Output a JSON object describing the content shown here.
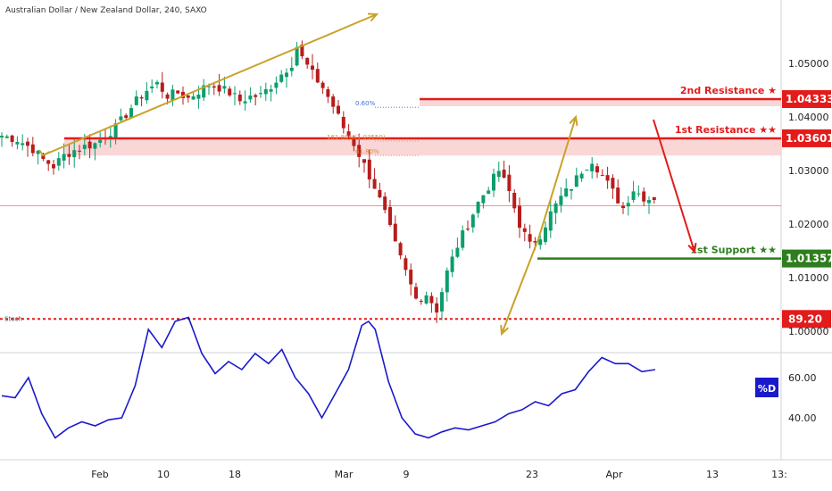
{
  "header": {
    "title": "Australian Dollar / New Zealand Dollar, 240, SAXO"
  },
  "colors": {
    "bull": "#0b9e6b",
    "bear": "#b71c1c",
    "resistance": "#e31b1b",
    "resistance_zone": "#f7c6c6",
    "support": "#2e7d1e",
    "arrow_gold": "#c9a227",
    "arrow_red": "#e31b1b",
    "stoch_line": "#1a1acc",
    "price_line": "#e57373",
    "fib_blue": "#3f6fd6",
    "fib_orange": "#e0902d"
  },
  "chart_data": [
    {
      "type": "candlestick",
      "symbol": "AUD/NZD",
      "timeframe": "240",
      "x_ticks": [
        "Feb",
        "10",
        "18",
        "Mar",
        "9",
        "23",
        "Apr",
        "13",
        "13:"
      ],
      "y_ticks": [
        "1.00000",
        "1.01000",
        "1.02000",
        "1.03000",
        "1.04000",
        "1.05000"
      ],
      "ylim": [
        0.996,
        1.057
      ],
      "close_path": [
        [
          0,
          1.0365
        ],
        [
          3,
          1.0358
        ],
        [
          6,
          1.034
        ],
        [
          8,
          1.032
        ],
        [
          10,
          1.0308
        ],
        [
          12,
          1.0328
        ],
        [
          14,
          1.0338
        ],
        [
          16,
          1.0345
        ],
        [
          18,
          1.035
        ],
        [
          20,
          1.0365
        ],
        [
          22,
          1.038
        ],
        [
          24,
          1.0405
        ],
        [
          26,
          1.043
        ],
        [
          28,
          1.045
        ],
        [
          30,
          1.0462
        ],
        [
          32,
          1.044
        ],
        [
          34,
          1.0445
        ],
        [
          36,
          1.0435
        ],
        [
          38,
          1.0448
        ],
        [
          40,
          1.046
        ],
        [
          42,
          1.0455
        ],
        [
          44,
          1.0445
        ],
        [
          46,
          1.043
        ],
        [
          48,
          1.0438
        ],
        [
          50,
          1.044
        ],
        [
          52,
          1.0458
        ],
        [
          54,
          1.048
        ],
        [
          56,
          1.05
        ],
        [
          57,
          1.0532
        ],
        [
          58,
          1.051
        ],
        [
          60,
          1.048
        ],
        [
          62,
          1.0455
        ],
        [
          64,
          1.042
        ],
        [
          66,
          1.038
        ],
        [
          68,
          1.035
        ],
        [
          70,
          1.031
        ],
        [
          72,
          1.027
        ],
        [
          74,
          1.022
        ],
        [
          76,
          1.016
        ],
        [
          78,
          1.011
        ],
        [
          80,
          1.006
        ],
        [
          82,
          1.007
        ],
        [
          84,
          1.004
        ],
        [
          86,
          1.011
        ],
        [
          88,
          1.016
        ],
        [
          90,
          1.02
        ],
        [
          92,
          1.024
        ],
        [
          94,
          1.027
        ],
        [
          96,
          1.03
        ],
        [
          98,
          1.026
        ],
        [
          100,
          1.02
        ],
        [
          102,
          1.016
        ],
        [
          104,
          1.018
        ],
        [
          106,
          1.022
        ],
        [
          108,
          1.025
        ],
        [
          110,
          1.027
        ],
        [
          112,
          1.03
        ],
        [
          114,
          1.032
        ],
        [
          116,
          1.029
        ],
        [
          118,
          1.026
        ],
        [
          120,
          1.023
        ],
        [
          122,
          1.0265
        ],
        [
          124,
          1.025
        ],
        [
          126,
          1.0245
        ]
      ],
      "levels": [
        {
          "label": "2nd Resistance ★",
          "value": "1.04333",
          "price": 1.04333,
          "kind": "resistance"
        },
        {
          "label": "1st Resistance ★★",
          "value": "1.03601",
          "price": 1.03601,
          "kind": "resistance"
        },
        {
          "label": "1st Support ★★",
          "value": "1.01357",
          "price": 1.01357,
          "kind": "support"
        }
      ],
      "current_price": 1.0234,
      "fib_labels": [
        {
          "text": "0.60%",
          "price": 1.0418
        },
        {
          "text": "161.80%(1.03550)",
          "price": 1.0355
        },
        {
          "text": "61.80%",
          "price": 1.0328
        }
      ]
    },
    {
      "type": "line",
      "name": "Stoch",
      "indicator_label": "Stoch",
      "y_ticks": [
        "40.00",
        "60.00"
      ],
      "ylim": [
        25,
        95
      ],
      "level": "89.20",
      "level_value": 89.2,
      "percent_d_label": "%D",
      "values": [
        [
          0,
          51
        ],
        [
          2,
          50
        ],
        [
          4,
          60
        ],
        [
          6,
          42
        ],
        [
          8,
          30
        ],
        [
          10,
          35
        ],
        [
          12,
          38
        ],
        [
          14,
          36
        ],
        [
          16,
          39
        ],
        [
          18,
          40
        ],
        [
          20,
          56
        ],
        [
          22,
          84
        ],
        [
          24,
          75
        ],
        [
          26,
          88
        ],
        [
          28,
          90
        ],
        [
          30,
          72
        ],
        [
          32,
          62
        ],
        [
          34,
          68
        ],
        [
          36,
          64
        ],
        [
          38,
          72
        ],
        [
          40,
          67
        ],
        [
          42,
          74
        ],
        [
          44,
          60
        ],
        [
          46,
          52
        ],
        [
          48,
          40
        ],
        [
          50,
          52
        ],
        [
          52,
          64
        ],
        [
          54,
          86
        ],
        [
          55,
          88
        ],
        [
          56,
          84
        ],
        [
          58,
          58
        ],
        [
          60,
          40
        ],
        [
          62,
          32
        ],
        [
          64,
          30
        ],
        [
          66,
          33
        ],
        [
          68,
          35
        ],
        [
          70,
          34
        ],
        [
          72,
          36
        ],
        [
          74,
          38
        ],
        [
          76,
          42
        ],
        [
          78,
          44
        ],
        [
          80,
          48
        ],
        [
          82,
          46
        ],
        [
          84,
          52
        ],
        [
          86,
          54
        ],
        [
          88,
          63
        ],
        [
          90,
          70
        ],
        [
          92,
          67
        ],
        [
          94,
          67
        ],
        [
          96,
          63
        ],
        [
          98,
          64
        ]
      ]
    }
  ]
}
